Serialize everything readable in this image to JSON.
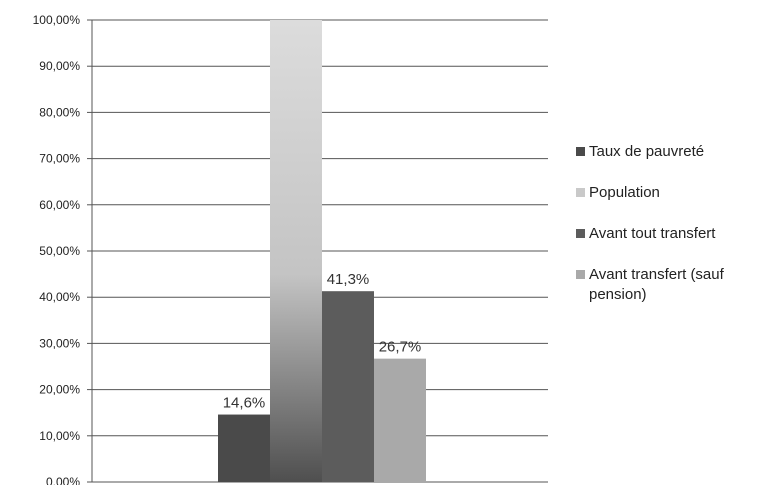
{
  "chart_data": {
    "type": "bar",
    "ylim": [
      0,
      100
    ],
    "ytick_step": 10,
    "ytick_labels": [
      "0,00%",
      "10,00%",
      "20,00%",
      "30,00%",
      "40,00%",
      "50,00%",
      "60,00%",
      "70,00%",
      "80,00%",
      "90,00%",
      "100,00%"
    ],
    "grid": true,
    "legend_position": "right",
    "series": [
      {
        "name": "Taux de pauvreté",
        "value": 14.6,
        "label": "14,6%",
        "color": "#4a4a4a"
      },
      {
        "name": "Population",
        "value": 100,
        "label": "",
        "color": "#c9c9c9"
      },
      {
        "name": "Avant tout transfert",
        "value": 41.3,
        "label": "41,3%",
        "color": "#5c5c5c"
      },
      {
        "name": "Avant transfert (sauf pension)",
        "value": 26.7,
        "label": "26,7%",
        "color": "#a9a9a9"
      }
    ]
  }
}
